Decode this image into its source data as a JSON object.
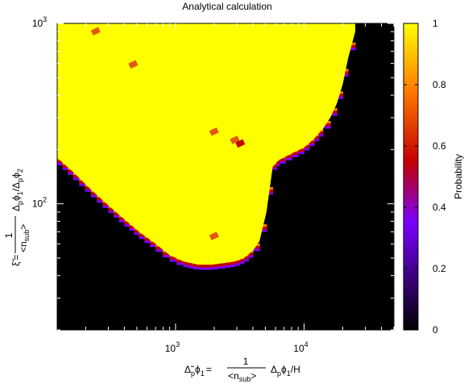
{
  "chart_data": {
    "type": "heatmap",
    "title": "Analytical calculation",
    "xscale": "log",
    "yscale": "log",
    "xlim": [
      120,
      50000
    ],
    "ylim": [
      20,
      1000
    ],
    "x_ticks": [
      {
        "value": 1000,
        "base": "10",
        "exp": "3"
      },
      {
        "value": 10000,
        "base": "10",
        "exp": "4"
      }
    ],
    "y_ticks": [
      {
        "value": 100,
        "base": "10",
        "exp": "2"
      },
      {
        "value": 1000,
        "base": "10",
        "exp": "3"
      }
    ],
    "xlabel": {
      "lhs": "Δ̃",
      "lhs_sub": "p",
      "lhs_rest": "ϕ",
      "lhs_rest_sub": "1",
      "eq": "=",
      "num": "1",
      "den": "<n",
      "den_sub": "sub",
      "den_end": ">",
      "rhs": "Δ",
      "rhs_sub": "p",
      "rhs_rest": "ϕ",
      "rhs_rest_sub": "1",
      "rhs_end": "/H"
    },
    "ylabel": {
      "lhs": "ξ̃",
      "eq": "=",
      "num": "1",
      "den": "<n",
      "den_sub": "sub",
      "den_end": ">",
      "rhs": "Δ",
      "rhs_sub": "p",
      "rhs_rest": "ϕ",
      "rhs_rest_sub": "1",
      "rhs_div": "/Δ",
      "rhs_div_sub": "p",
      "rhs_div_rest": "ϕ",
      "rhs_div_rest_sub": "2"
    },
    "colorbar": {
      "label": "Probability",
      "range": [
        0,
        1
      ],
      "ticks": [
        "0",
        "0.2",
        "0.4",
        "0.6",
        "0.8",
        "1"
      ],
      "tick_values": [
        0,
        0.2,
        0.4,
        0.6,
        0.8,
        1
      ],
      "colors": [
        "#000000",
        "#7a00ff",
        "#c40000",
        "#ff7a00",
        "#ffff00"
      ]
    },
    "probability_one_region_boundary": {
      "description_values": "x (data units) vs lower y bound of the P=1 region",
      "x": [
        120,
        160,
        220,
        300,
        400,
        520,
        700,
        900,
        1150,
        1500,
        1900,
        2400,
        2900,
        3400,
        4000,
        4500,
        5100,
        5700,
        6100,
        6400,
        8000,
        10000,
        12000,
        14000,
        16000,
        18000,
        20000,
        22000,
        25000
      ],
      "y_lower": [
        180,
        150,
        120,
        98,
        82,
        70,
        60,
        52,
        48,
        46,
        46,
        47,
        48,
        50,
        55,
        62,
        90,
        160,
        170,
        175,
        190,
        205,
        230,
        260,
        300,
        360,
        460,
        640,
        900
      ]
    },
    "isolated_cells": [
      {
        "x": 240,
        "y": 900,
        "p": 0.7
      },
      {
        "x": 470,
        "y": 590,
        "p": 0.7
      },
      {
        "x": 2000,
        "y": 250,
        "p": 0.7
      },
      {
        "x": 2900,
        "y": 225,
        "p": 0.7
      },
      {
        "x": 2000,
        "y": 66,
        "p": 0.7
      },
      {
        "x": 3200,
        "y": 215,
        "p": 0.5
      }
    ]
  }
}
